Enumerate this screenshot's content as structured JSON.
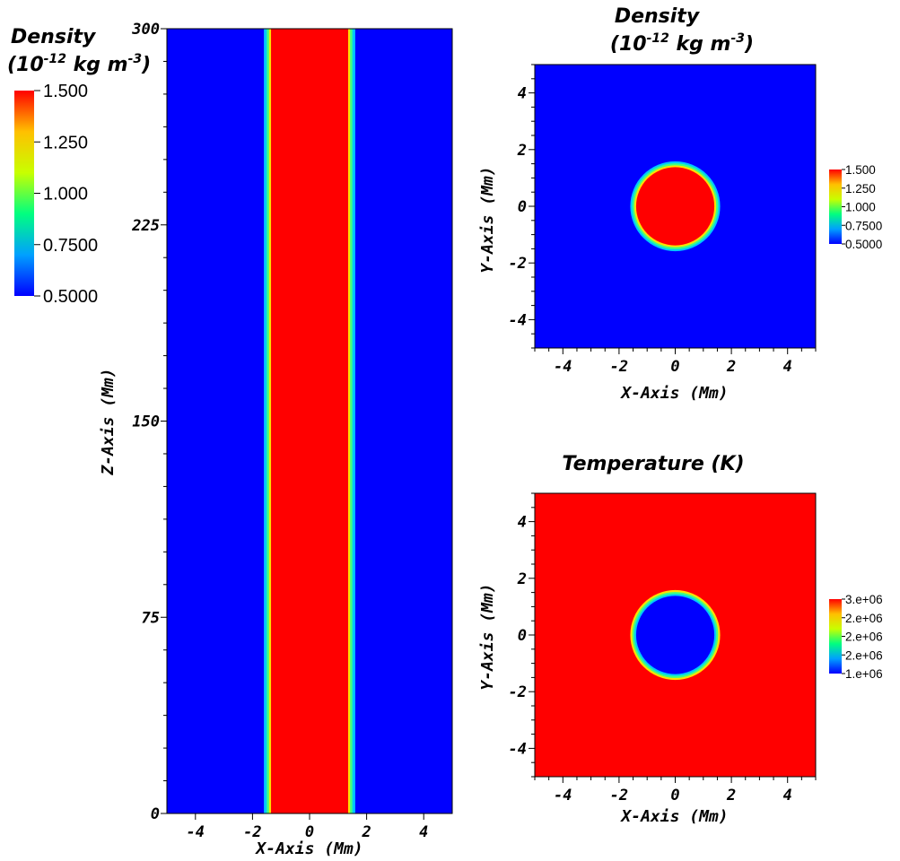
{
  "colormap": [
    "#0000ff",
    "#00a0ff",
    "#00ff80",
    "#c8ff00",
    "#ffc000",
    "#ff0000"
  ],
  "chart_data": [
    {
      "type": "heatmap",
      "id": "vertical",
      "xlabel": "X-Axis (Mm)",
      "ylabel": "Z-Axis (Mm)",
      "xlim": [
        -5,
        5
      ],
      "ylim": [
        0,
        300
      ],
      "x_ticks": [
        -4,
        -2,
        0,
        2,
        4
      ],
      "y_ticks": [
        0,
        75,
        150,
        225,
        300
      ],
      "tube_radius": 1.6,
      "inside_value": 1.5,
      "outside_value": 0.5,
      "colorbar": {
        "title_line1": "Density",
        "title_prefix": "(10",
        "title_exp": "-12",
        "title_suffix": " kg m",
        "title_exp2": "-3",
        "title_close": ")",
        "range": [
          0.5,
          1.5
        ],
        "tick_labels": [
          "1.500",
          "1.250",
          "1.000",
          "0.7500",
          "0.5000"
        ]
      }
    },
    {
      "type": "heatmap",
      "id": "density_xy",
      "title_line1": "Density",
      "title_prefix": "(10",
      "title_exp": "-12",
      "title_suffix": " kg m",
      "title_exp2": "-3",
      "title_close": ")",
      "xlabel": "X-Axis (Mm)",
      "ylabel": "Y-Axis  (Mm)",
      "xlim": [
        -5,
        5
      ],
      "ylim": [
        -5,
        5
      ],
      "x_ticks": [
        -4,
        -2,
        0,
        2,
        4
      ],
      "y_ticks": [
        -4,
        -2,
        0,
        2,
        4
      ],
      "tube_radius": 1.6,
      "inside_value": 1.5,
      "outside_value": 0.5,
      "colorbar": {
        "range": [
          0.5,
          1.5
        ],
        "tick_labels": [
          "1.500",
          "1.250",
          "1.000",
          "0.7500",
          "0.5000"
        ]
      }
    },
    {
      "type": "heatmap",
      "id": "temperature_xy",
      "title": "Temperature (K)",
      "xlabel": "X-Axis  (Mm)",
      "ylabel": "Y-Axis (Mm)",
      "xlim": [
        -5,
        5
      ],
      "ylim": [
        -5,
        5
      ],
      "x_ticks": [
        -4,
        -2,
        0,
        2,
        4
      ],
      "y_ticks": [
        -4,
        -2,
        0,
        2,
        4
      ],
      "tube_radius": 1.6,
      "inside_value": 1000000,
      "outside_value": 3000000,
      "colorbar": {
        "range": [
          1000000,
          3000000
        ],
        "tick_labels": [
          "3.e+06",
          "2.e+06",
          "2.e+06",
          "2.e+06",
          "1.e+06"
        ]
      }
    }
  ]
}
